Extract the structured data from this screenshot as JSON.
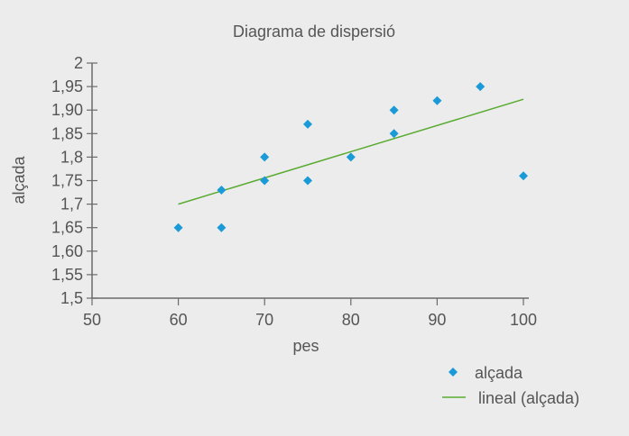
{
  "chart_data": {
    "type": "scatter",
    "title": "Diagrama de dispersió",
    "xlabel": "pes",
    "ylabel": "alçada",
    "xlim": [
      50,
      100
    ],
    "ylim": [
      1.5,
      2
    ],
    "x_ticks": [
      "50",
      "60",
      "70",
      "80",
      "90",
      "100"
    ],
    "x_tick_values": [
      50,
      60,
      70,
      80,
      90,
      100
    ],
    "y_ticks": [
      "2",
      "1,95",
      "1,90",
      "1,85",
      "1,8",
      "1,75",
      "1,7",
      "1,65",
      "1,60",
      "1,55",
      "1,5"
    ],
    "y_tick_values": [
      2,
      1.95,
      1.9,
      1.85,
      1.8,
      1.75,
      1.7,
      1.65,
      1.6,
      1.55,
      1.5
    ],
    "grid": false,
    "legend_position": "bottom-right",
    "series": [
      {
        "name": "alçada",
        "kind": "scatter",
        "marker": "diamond",
        "color": "#1a9ad6",
        "points": [
          [
            60,
            1.65
          ],
          [
            65,
            1.73
          ],
          [
            65,
            1.65
          ],
          [
            70,
            1.8
          ],
          [
            70,
            1.75
          ],
          [
            75,
            1.87
          ],
          [
            75,
            1.75
          ],
          [
            80,
            1.8
          ],
          [
            85,
            1.9
          ],
          [
            85,
            1.85
          ],
          [
            90,
            1.92
          ],
          [
            95,
            1.95
          ],
          [
            100,
            1.76
          ]
        ]
      },
      {
        "name": "lineal (alçada)",
        "kind": "trendline",
        "color": "#5aab32",
        "points": [
          [
            60,
            1.7
          ],
          [
            100,
            1.923
          ]
        ]
      }
    ]
  }
}
